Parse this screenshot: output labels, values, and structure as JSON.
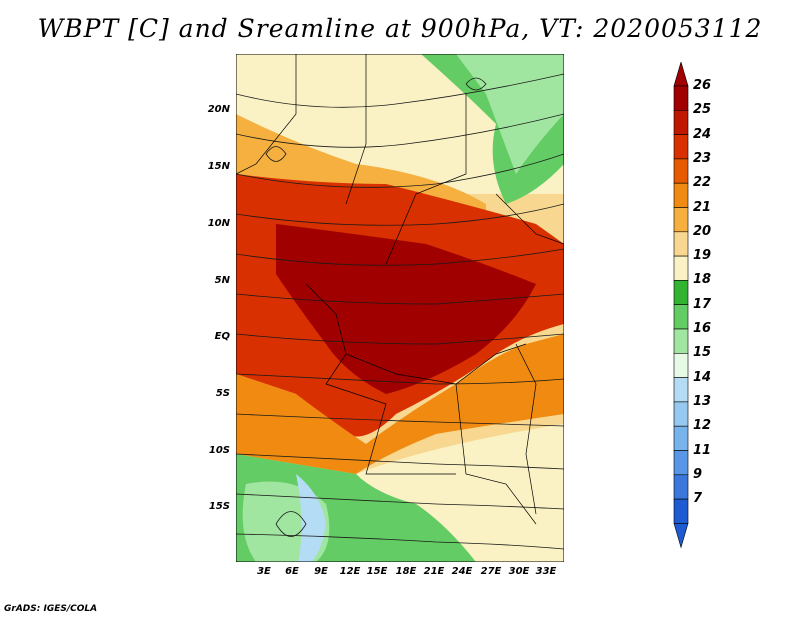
{
  "title": "WBPT [C] and Sreamline at 900hPa, VT: 2020053112",
  "credit": "GrADS: IGES/COLA",
  "map": {
    "region": "West and Central Africa",
    "lat_labels": [
      "20N",
      "15N",
      "10N",
      "5N",
      "EQ",
      "5S",
      "10S",
      "15S"
    ],
    "lon_labels": [
      "3E",
      "6E",
      "9E",
      "12E",
      "15E",
      "18E",
      "21E",
      "24E",
      "27E",
      "30E",
      "33E"
    ]
  },
  "colorbar": {
    "labels": [
      "26",
      "25",
      "24",
      "23",
      "22",
      "21",
      "20",
      "19",
      "18",
      "17",
      "16",
      "15",
      "14",
      "13",
      "12",
      "11",
      "9",
      "7"
    ],
    "colors": [
      "#a00000",
      "#c01800",
      "#d83000",
      "#e85a00",
      "#f08a10",
      "#f5b040",
      "#f8d890",
      "#faf2c4",
      "#32b432",
      "#64cc64",
      "#a0e6a0",
      "#e6fae6",
      "#b4dcf5",
      "#96c8f0",
      "#78b4eb",
      "#5a96e6",
      "#3c78dc",
      "#1e5ad2"
    ]
  }
}
